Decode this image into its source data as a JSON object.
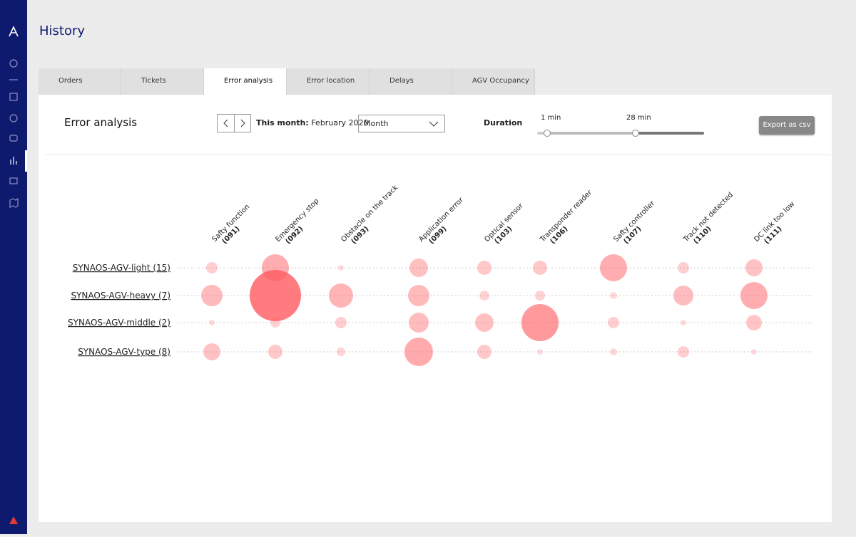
{
  "header": {
    "title": "History"
  },
  "tabs": [
    {
      "label": "Orders",
      "icon": "list",
      "active": false
    },
    {
      "label": "Tickets",
      "icon": "list",
      "active": false
    },
    {
      "label": "Error analysis",
      "icon": "chart",
      "active": true
    },
    {
      "label": "Error location",
      "icon": "chart",
      "active": false
    },
    {
      "label": "Delays",
      "icon": "chart",
      "active": false
    },
    {
      "label": "AGV Occupancy",
      "icon": "chart",
      "active": false
    }
  ],
  "panel": {
    "title": "Error analysis",
    "period_label": "This month:",
    "period_value": "February 2020",
    "select": "Month",
    "duration_label": "Duration",
    "duration_min": "1 min",
    "duration_max": "28 min",
    "export": "Export as csv"
  },
  "chart_data": {
    "type": "bubble-matrix",
    "color": "#ff5a5f",
    "columns": [
      {
        "name": "Safty function",
        "code": "(091)"
      },
      {
        "name": "Emergency stop",
        "code": "(092)"
      },
      {
        "name": "Obstacle on the track",
        "code": "(093)"
      },
      {
        "name": "Application error",
        "code": "(099)"
      },
      {
        "name": "Optical sensor",
        "code": "(103)"
      },
      {
        "name": "Transponder reader",
        "code": "(106)"
      },
      {
        "name": "Safty controller",
        "code": "(107)"
      },
      {
        "name": "Track not detected",
        "code": "(110)"
      },
      {
        "name": "DC link too low",
        "code": "(111)"
      }
    ],
    "rows": [
      "SYNAOS-AGV-light (15)",
      "SYNAOS-AGV-heavy (7)",
      "SYNAOS-AGV-middle (2)",
      "SYNAOS-AGV-type (8)"
    ],
    "values": [
      [
        16,
        90,
        4,
        42,
        25,
        25,
        90,
        16,
        36
      ],
      [
        56,
        324,
        72,
        56,
        12,
        12,
        6,
        49,
        90
      ],
      [
        4,
        12,
        16,
        49,
        42,
        169,
        16,
        4,
        30
      ],
      [
        36,
        25,
        9,
        100,
        25,
        4,
        6,
        16,
        4
      ]
    ]
  }
}
